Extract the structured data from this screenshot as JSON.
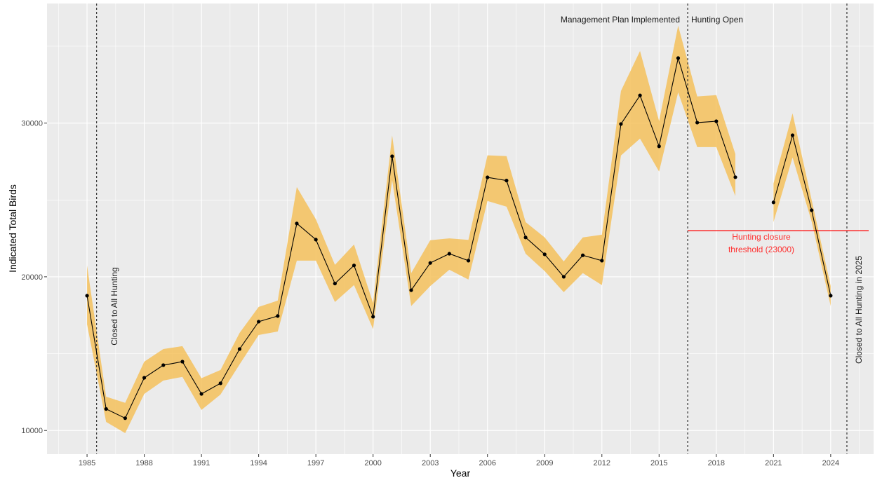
{
  "chart_data": {
    "type": "line",
    "title": "",
    "xlabel": "Year",
    "ylabel": "Indicated Total Birds",
    "xlim": [
      1982.9,
      2026.25
    ],
    "ylim": [
      8460,
      37780
    ],
    "x_ticks": [
      1985,
      1988,
      1991,
      1994,
      1997,
      2000,
      2003,
      2006,
      2009,
      2012,
      2015,
      2018,
      2021,
      2024
    ],
    "y_ticks": [
      10000,
      20000,
      30000
    ],
    "grid": true,
    "colors": {
      "panel": "#ebebeb",
      "grid": "#ffffff",
      "band": "#f5c15c",
      "line": "#000000",
      "threshold": "#ff0000",
      "vline": "#333333"
    },
    "segments": [
      {
        "x": [
          1985,
          1986,
          1987,
          1988,
          1989,
          1990,
          1991,
          1992,
          1993,
          1994,
          1995,
          1996,
          1997,
          1998,
          1999,
          2000,
          2001,
          2002,
          2003,
          2004,
          2005,
          2006,
          2007,
          2008,
          2009,
          2010,
          2011,
          2012,
          2013,
          2014,
          2015,
          2016,
          2017,
          2018,
          2019
        ],
        "y": [
          18770,
          11400,
          10800,
          13430,
          14250,
          14480,
          12380,
          13070,
          15300,
          17080,
          17450,
          23470,
          22420,
          19560,
          20740,
          17400,
          27840,
          19130,
          20900,
          21500,
          21050,
          26470,
          26260,
          22560,
          21460,
          20000,
          21400,
          21050,
          29940,
          31800,
          28490,
          34230,
          30030,
          30120,
          26480
        ],
        "upper": [
          20730,
          12200,
          11800,
          14480,
          15300,
          15490,
          13400,
          13940,
          16350,
          18040,
          18450,
          25840,
          23740,
          20780,
          22100,
          18300,
          29200,
          20240,
          22380,
          22500,
          22400,
          27900,
          27850,
          23560,
          22560,
          21000,
          22560,
          22740,
          32090,
          34690,
          30130,
          36340,
          31730,
          31820,
          27990
        ],
        "lower": [
          16900,
          10560,
          9830,
          12380,
          13250,
          13490,
          11340,
          12340,
          14300,
          16210,
          16440,
          21050,
          21050,
          18360,
          19460,
          16600,
          26300,
          18100,
          19400,
          20460,
          19820,
          24930,
          24560,
          21500,
          20370,
          19000,
          20240,
          19460,
          27890,
          28990,
          26850,
          32000,
          28440,
          28440,
          25250
        ]
      },
      {
        "x": [
          2021,
          2022,
          2023,
          2024
        ],
        "y": [
          24840,
          29210,
          24330,
          18770
        ],
        "upper": [
          26070,
          30630,
          25000,
          19400
        ],
        "lower": [
          23560,
          27760,
          23600,
          18100
        ]
      }
    ],
    "vlines": [
      {
        "x": 1985.5,
        "label": "Closed to All Hunting"
      },
      {
        "x": 2016.5,
        "label_left": "Management Plan Implemented",
        "label_right": "Hunting Open"
      },
      {
        "x": 2024.85,
        "label": "Closed to All Hunting in 2025"
      }
    ],
    "threshold": {
      "y": 23000,
      "x_start": 2016.5,
      "label_line1": "Hunting closure",
      "label_line2": "threshold (23000)"
    }
  }
}
